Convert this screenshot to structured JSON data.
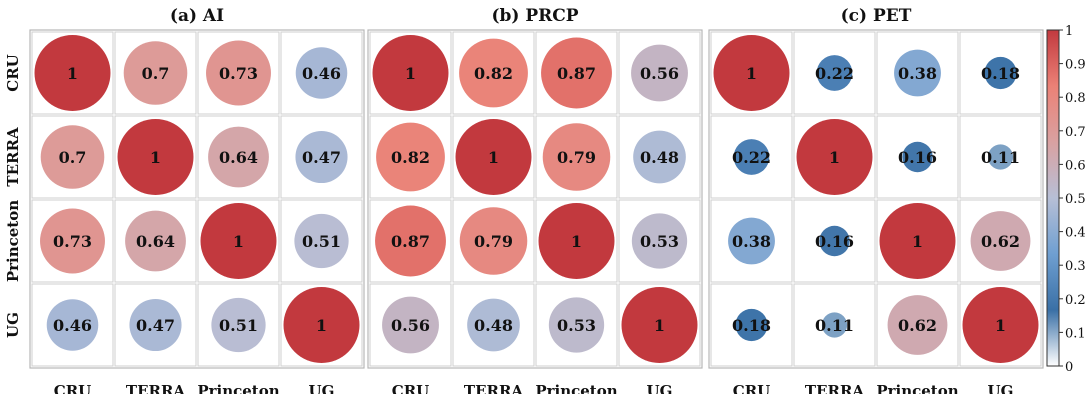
{
  "chart_data": {
    "type": "heatmap",
    "variables": [
      "CRU",
      "TERRA",
      "Princeton",
      "UG"
    ],
    "panels": [
      {
        "title": "(a) AI",
        "matrix": [
          [
            "1",
            "0.7",
            "0.73",
            "0.46"
          ],
          [
            "0.7",
            "1",
            "0.64",
            "0.47"
          ],
          [
            "0.73",
            "0.64",
            "1",
            "0.51"
          ],
          [
            "0.46",
            "0.47",
            "0.51",
            "1"
          ]
        ]
      },
      {
        "title": "(b) PRCP",
        "matrix": [
          [
            "1",
            "0.82",
            "0.87",
            "0.56"
          ],
          [
            "0.82",
            "1",
            "0.79",
            "0.48"
          ],
          [
            "0.87",
            "0.79",
            "1",
            "0.53"
          ],
          [
            "0.56",
            "0.48",
            "0.53",
            "1"
          ]
        ]
      },
      {
        "title": "(c) PET",
        "matrix": [
          [
            "1",
            "0.22",
            "0.38",
            "0.18"
          ],
          [
            "0.22",
            "1",
            "0.16",
            "0.11"
          ],
          [
            "0.38",
            "0.16",
            "1",
            "0.62"
          ],
          [
            "0.18",
            "0.11",
            "0.62",
            "1"
          ]
        ]
      }
    ],
    "colorbar": {
      "range": [
        0,
        1
      ],
      "ticks": [
        "0",
        "0.1",
        "0.2",
        "0.3",
        "0.4",
        "0.5",
        "0.6",
        "0.7",
        "0.8",
        "0.9",
        "1"
      ],
      "colors": [
        "#ffffff",
        "#3a70a6",
        "#6f9fd1",
        "#b7bfd6",
        "#d9a1a1",
        "#eb8176",
        "#c2393e"
      ]
    },
    "grid": true,
    "legend_position": "right"
  }
}
